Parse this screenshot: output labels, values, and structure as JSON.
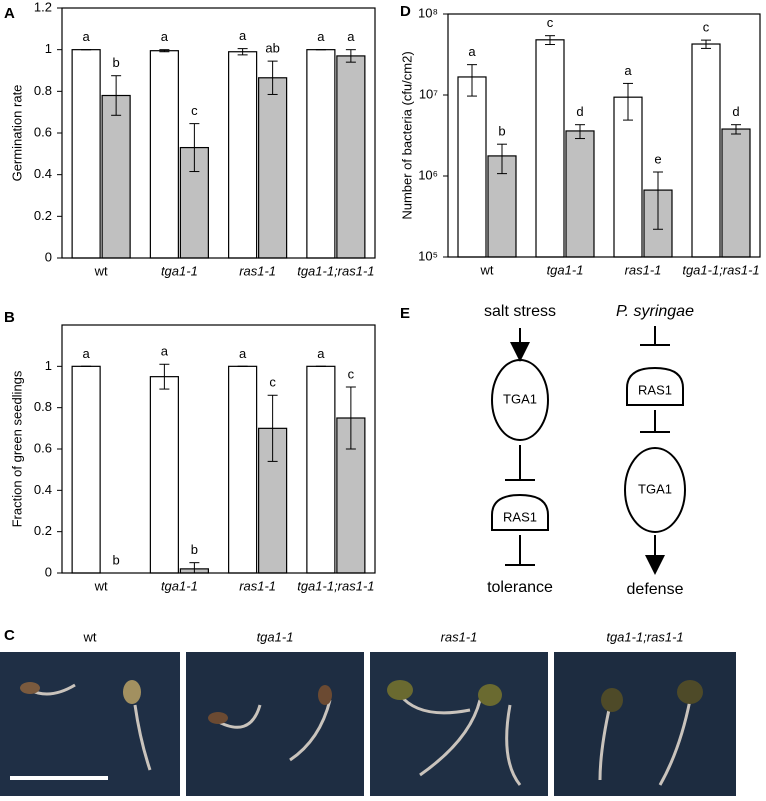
{
  "chart_data": [
    {
      "type": "bar",
      "panel": "A",
      "y_label": "Germination rate",
      "categories": [
        "wt",
        "tga1-1",
        "ras1-1",
        "tga1-1;ras1-1"
      ],
      "series": [
        {
          "color": "#ffffff",
          "values": [
            1,
            0.995,
            0.99,
            1
          ],
          "errors": [
            0,
            0.005,
            0.015,
            0
          ],
          "letters": [
            "a",
            "a",
            "a",
            "a"
          ]
        },
        {
          "color": "#c0c0c0",
          "values": [
            0.78,
            0.53,
            0.865,
            0.97
          ],
          "errors": [
            0.095,
            0.115,
            0.08,
            0.03
          ],
          "letters": [
            "b",
            "c",
            "ab",
            "a"
          ]
        }
      ],
      "ylim": [
        0,
        1.2
      ],
      "yticks": [
        0,
        0.2,
        0.4,
        0.6,
        0.8,
        1,
        1.2
      ]
    },
    {
      "type": "bar",
      "panel": "B",
      "y_label": "Fraction of green seedlings",
      "categories": [
        "wt",
        "tga1-1",
        "ras1-1",
        "tga1-1;ras1-1"
      ],
      "series": [
        {
          "color": "#ffffff",
          "values": [
            1,
            0.95,
            1,
            1
          ],
          "errors": [
            0,
            0.06,
            0,
            0
          ],
          "letters": [
            "a",
            "a",
            "a",
            "a"
          ]
        },
        {
          "color": "#c0c0c0",
          "values": [
            0,
            0.02,
            0.7,
            0.75
          ],
          "errors": [
            0,
            0.03,
            0.16,
            0.15
          ],
          "letters": [
            "b",
            "b",
            "c",
            "c"
          ]
        }
      ],
      "ylim": [
        0,
        1.2
      ],
      "yticks": [
        0,
        0.2,
        0.4,
        0.6,
        0.8,
        1
      ]
    },
    {
      "type": "bar",
      "panel": "D",
      "y_label": "Number of bacteria (cfu/cm2)",
      "log_scale": true,
      "categories": [
        "wt",
        "tga1-1",
        "ras1-1",
        "tga1-1;ras1-1"
      ],
      "series": [
        {
          "color": "#ffffff",
          "values": [
            16700000,
            48000000,
            9400000,
            42600000
          ],
          "errors": [
            7000000,
            6000000,
            4500000,
            5000000
          ],
          "letters": [
            "a",
            "c",
            "a",
            "c"
          ]
        },
        {
          "color": "#c0c0c0",
          "values": [
            1770000,
            3600000,
            670000,
            3800000
          ],
          "errors": [
            700000,
            700000,
            450000,
            500000
          ],
          "letters": [
            "b",
            "d",
            "e",
            "d"
          ]
        }
      ],
      "ylim": [
        100000,
        100000000
      ],
      "yticks": [
        {
          "value": 100000,
          "label": "10⁵"
        },
        {
          "value": 1000000,
          "label": "10⁶"
        },
        {
          "value": 10000000,
          "label": "10⁷"
        },
        {
          "value": 100000000,
          "label": "10⁸"
        }
      ]
    }
  ],
  "photos": {
    "panel": "C",
    "labels": [
      "wt",
      "tga1-1",
      "ras1-1",
      "tga1-1;ras1-1"
    ]
  },
  "diagram": {
    "panel": "E",
    "left": {
      "input": "salt stress",
      "node1": "TGA1",
      "node2": "RAS1",
      "output": "tolerance"
    },
    "right": {
      "input": "P. syringae",
      "node1": "RAS1",
      "node2": "TGA1",
      "output": "defense"
    }
  }
}
